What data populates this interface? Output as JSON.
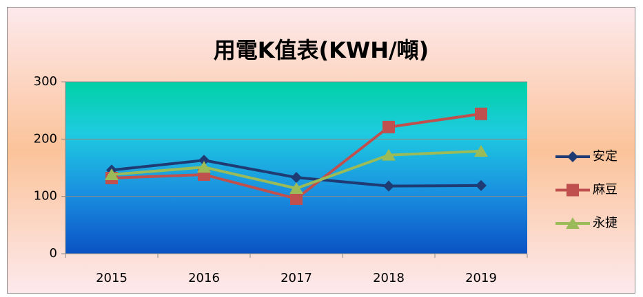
{
  "chart_data": {
    "type": "line",
    "title": "用電K值表(KWH/噸)",
    "categories": [
      "2015",
      "2016",
      "2017",
      "2018",
      "2019"
    ],
    "series": [
      {
        "name": "安定",
        "color": "#1f3b73",
        "marker": "diamond",
        "values": [
          146,
          163,
          133,
          118,
          119
        ]
      },
      {
        "name": "麻豆",
        "color": "#c0504d",
        "marker": "square",
        "values": [
          132,
          138,
          96,
          221,
          244
        ]
      },
      {
        "name": "永捷",
        "color": "#9bbb59",
        "marker": "triangle",
        "values": [
          138,
          151,
          114,
          172,
          179
        ]
      }
    ],
    "ylim": [
      0,
      300
    ],
    "yticks": [
      0,
      100,
      200,
      300
    ],
    "grid": true,
    "legend": "right"
  }
}
